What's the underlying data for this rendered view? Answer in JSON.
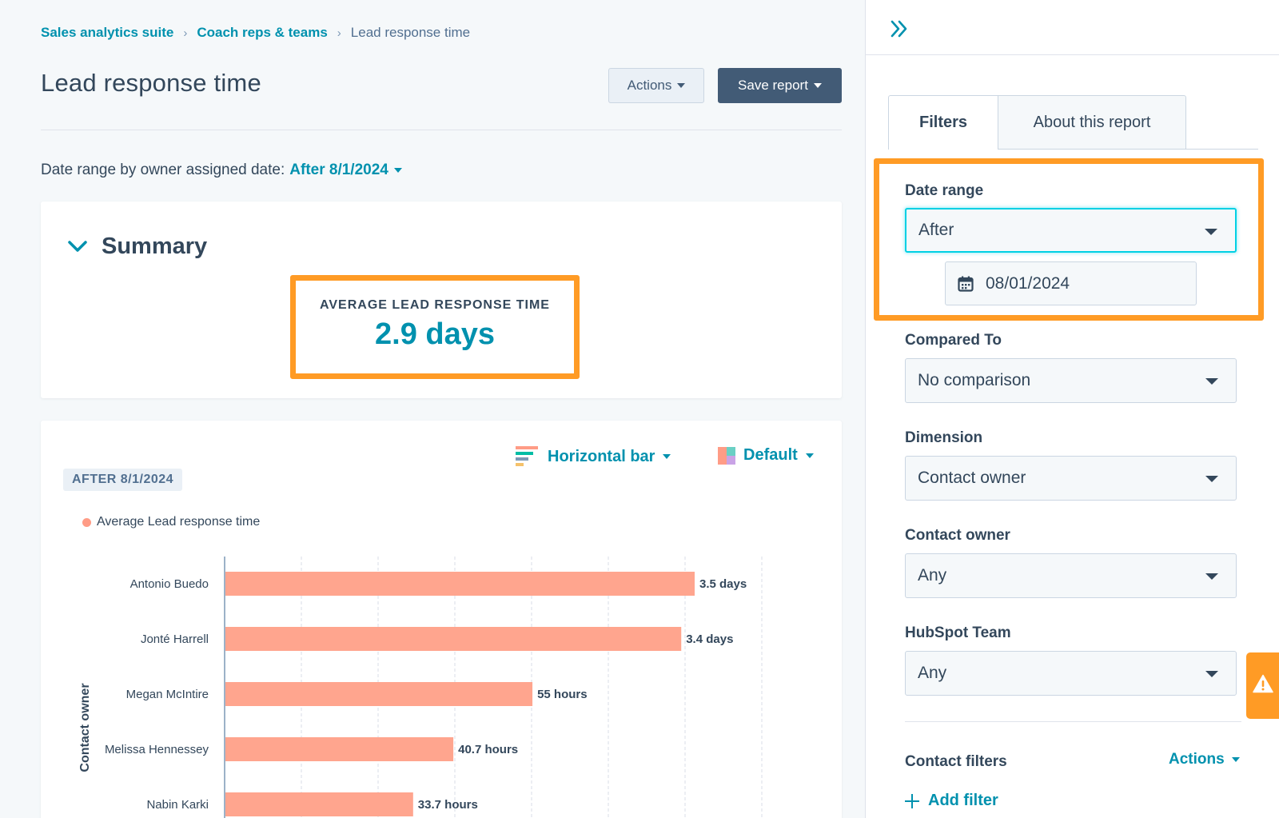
{
  "breadcrumb": {
    "items": [
      {
        "label": "Sales analytics suite"
      },
      {
        "label": "Coach reps & teams"
      }
    ],
    "current": "Lead response time"
  },
  "page": {
    "title": "Lead response time",
    "actions_label": "Actions",
    "save_label": "Save report"
  },
  "date_range_line": {
    "prefix": "Date range by owner assigned date:",
    "value": "After 8/1/2024"
  },
  "summary": {
    "title": "Summary",
    "kpi_label": "AVERAGE LEAD RESPONSE TIME",
    "kpi_value": "2.9 days"
  },
  "chart_controls": {
    "type_label": "Horizontal bar",
    "color_label": "Default",
    "date_tag": "AFTER 8/1/2024"
  },
  "chart_data": {
    "type": "bar",
    "orientation": "horizontal",
    "ylabel": "Contact owner",
    "legend": "Average Lead response time",
    "bar_color": "#ffa58e",
    "categories": [
      "Antonio Buedo",
      "Jonté Harrell",
      "Megan McIntire",
      "Melissa Hennessey",
      "Nabin Karki"
    ],
    "values_days": [
      3.5,
      3.4,
      2.29,
      1.7,
      1.4
    ],
    "data_labels": [
      "3.5 days",
      "3.4 days",
      "55 hours",
      "40.7 hours",
      "33.7 hours"
    ],
    "grid": true
  },
  "panel": {
    "tabs": [
      {
        "label": "Filters",
        "active": true
      },
      {
        "label": "About this report",
        "active": false
      }
    ],
    "filters": {
      "date_range": {
        "label": "Date range",
        "value": "After",
        "date": "08/01/2024"
      },
      "compared_to": {
        "label": "Compared To",
        "value": "No comparison"
      },
      "dimension": {
        "label": "Dimension",
        "value": "Contact owner"
      },
      "contact_owner": {
        "label": "Contact owner",
        "value": "Any"
      },
      "hubspot_team": {
        "label": "HubSpot Team",
        "value": "Any"
      }
    },
    "contact_filters": {
      "label": "Contact filters",
      "actions_label": "Actions",
      "add_filter_label": "Add filter"
    }
  },
  "colors": {
    "accent": "#0091ae",
    "highlight": "#ff9b25",
    "bar": "#ffa58e",
    "dark_button": "#425b76"
  }
}
